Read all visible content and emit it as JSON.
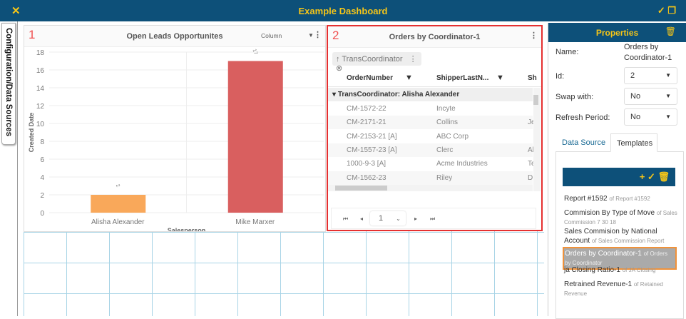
{
  "header": {
    "title": "Example Dashboard",
    "close_icon": "close-x-icon",
    "actions": [
      "check-icon",
      "copy-icon"
    ]
  },
  "side_tab": {
    "label": "Configuration/Data Sources"
  },
  "panel1": {
    "number": "1",
    "title": "Open Leads Opportunites",
    "chart_type_select": "Column"
  },
  "chart_data": {
    "type": "bar",
    "title": "Open Leads Opportunites",
    "categories": [
      "Alisha Alexander",
      "Mike Marxer"
    ],
    "values": [
      2,
      17
    ],
    "data_labels": [
      "2",
      "17"
    ],
    "bar_colors": [
      "#f9a85a",
      "#d95f5f"
    ],
    "xlabel": "Salesperson",
    "ylabel": "Created Date",
    "ylim": [
      0,
      18
    ],
    "yticks": [
      "0",
      "2",
      "4",
      "6",
      "8",
      "10",
      "12",
      "14",
      "16",
      "18"
    ],
    "grid": true
  },
  "panel2": {
    "number": "2",
    "title": "Orders by Coordinator-1",
    "group_chip": "TransCoordinator",
    "columns": [
      "OrderNumber",
      "ShipperLastN...",
      "Sh"
    ],
    "group_row": "TransCoordinator: Alisha Alexander",
    "rows": [
      [
        "CM-1572-22",
        "Incyte",
        ""
      ],
      [
        "CM-2171-21",
        "Collins",
        "Je"
      ],
      [
        "CM-2153-21 [A]",
        "ABC Corp",
        ""
      ],
      [
        "CM-1557-23 [A]",
        "Clerc",
        "Al"
      ],
      [
        "1000-9-3 [A]",
        "Acme Industries",
        "Te"
      ],
      [
        "CM-1562-23",
        "Riley",
        "D"
      ]
    ],
    "page": "1",
    "accent": "#e53030"
  },
  "properties": {
    "title": "Properties",
    "name_label": "Name:",
    "name_value_1": "Orders by",
    "name_value_2": "Coordinator-1",
    "id_label": "Id:",
    "id_value": "2",
    "swap_label": "Swap with:",
    "swap_value": "No",
    "refresh_label": "Refresh Period:",
    "refresh_value": "No",
    "tabs": [
      "Data Source",
      "Templates"
    ],
    "active_tab": "Templates",
    "templates": [
      {
        "name": "Report #1592",
        "of": "of Report #1592"
      },
      {
        "name": "Commision By Type of Move",
        "of": "of Sales Commission 7 30 18"
      },
      {
        "name": "Sales Commision by National Account",
        "of": "of Sales Commission Report"
      },
      {
        "name": "Orders by Coordinator-1",
        "of": "of Orders by Coordinator",
        "selected": true
      },
      {
        "name": "ja Closing Ratio-1",
        "of": "of JA Closing"
      },
      {
        "name": "Retrained Revenue-1",
        "of": "of Retained Revenue"
      }
    ]
  }
}
